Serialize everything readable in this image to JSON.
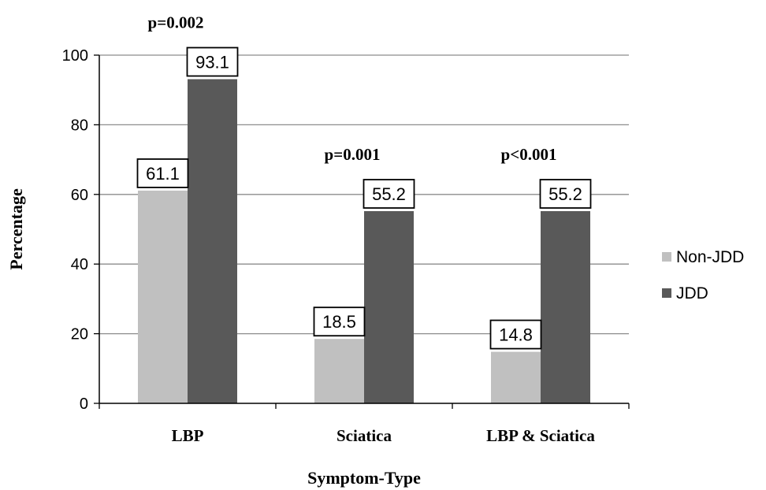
{
  "chart_data": {
    "type": "bar",
    "title": "",
    "xlabel": "Symptom-Type",
    "ylabel": "Percentage",
    "categories": [
      "LBP",
      "Sciatica",
      "LBP & Sciatica"
    ],
    "series": [
      {
        "name": "Non-JDD",
        "values": [
          61.1,
          18.5,
          14.8
        ],
        "color": "#c0c0c0"
      },
      {
        "name": "JDD",
        "values": [
          93.1,
          55.2,
          55.2
        ],
        "color": "#595959"
      }
    ],
    "data_labels": [
      [
        "61.1",
        "18.5",
        "14.8"
      ],
      [
        "93.1",
        "55.2",
        "55.2"
      ]
    ],
    "annotations": [
      "p=0.002",
      "p=0.001",
      "p<0.001"
    ],
    "ylim": [
      0,
      100
    ],
    "yticks": [
      0,
      20,
      40,
      60,
      80,
      100
    ],
    "grid": true,
    "legend_position": "right"
  }
}
